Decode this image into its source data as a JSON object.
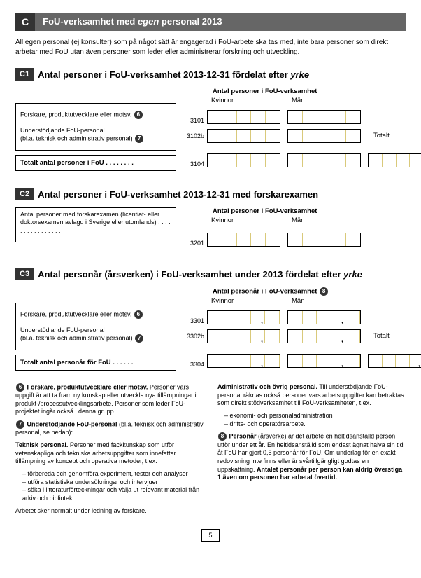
{
  "section": {
    "letter": "C",
    "title_html": "FoU-verksamhet med <em>egen</em> personal 2013"
  },
  "intro": "All egen personal (ej konsulter) som på något sätt är engagerad i FoU-arbete ska tas med, inte bara personer som direkt arbetar med FoU utan även personer som leder eller administrerar forskning och utveckling.",
  "c1": {
    "badge": "C1",
    "title_html": "Antal personer i FoU-verksamhet 2013-12-31 fördelat efter <em>yrke</em>",
    "header": "Antal personer i FoU-verksamhet",
    "col_kvinnor": "Kvinnor",
    "col_man": "Män",
    "totalt": "Totalt",
    "row1": {
      "text": "Forskare, produktutvecklare eller motsv.",
      "note": "6",
      "code": "3101"
    },
    "row2": {
      "text1": "Understödjande FoU-personal",
      "text2": "(bl.a. teknisk och administrativ personal)",
      "note": "7",
      "code": "3102b"
    },
    "row_total": {
      "text": "Totalt antal personer i FoU . . . . . . . .",
      "code": "3104"
    }
  },
  "c2": {
    "badge": "C2",
    "title": "Antal personer i FoU-verksamhet 2013-12-31 med forskarexamen",
    "header": "Antal personer i FoU-verksamhet",
    "col_kvinnor": "Kvinnor",
    "col_man": "Män",
    "row1": {
      "text": "Antal personer med forskarexamen (licentiat- eller doktorsexamen avlagd i Sverige eller utomlands) . . . . . . . . . . . . . . . .",
      "code": "3201"
    }
  },
  "c3": {
    "badge": "C3",
    "title_html": "Antal personår (årsverken) i <strong>FoU-verksamhet under 2013 fördelat efter <em>yrke</em></strong>",
    "header": "Antal personår i FoU-verksamhet",
    "header_note": "8",
    "col_kvinnor": "Kvinnor",
    "col_man": "Män",
    "totalt": "Totalt",
    "row1": {
      "text": "Forskare, produktutvecklare eller motsv.",
      "note": "6",
      "code": "3301"
    },
    "row2": {
      "text1": "Understödjande FoU-personal",
      "text2": "(bl.a. teknisk och administrativ personal)",
      "note": "7",
      "code": "3302b"
    },
    "row_total": {
      "text": "Totalt antal personår för FoU . . . . . .",
      "code": "3304"
    }
  },
  "notes": {
    "left": {
      "p1_lead": "Forskare, produktutvecklare eller motsv.",
      "p1_note": "6",
      "p1": " Personer vars uppgift är att ta fram ny kunskap eller utveckla nya tillämpningar i produkt-/processutvecklingsarbete. Personer som leder FoU-projektet ingår också i denna grupp.",
      "p2_lead": "Understödjande FoU-personal",
      "p2_note": "7",
      "p2_tail": " (bl.a. teknisk och administrativ personal, se nedan):",
      "p3_lead": "Teknisk personal.",
      "p3": " Personer med fackkunskap som utför vetenskapliga och tekniska arbetsuppgifter som innefattar tillämpning av koncept och operativa metoder, t.ex.",
      "li1": "förbereda och genomföra experiment, tester och analyser",
      "li2": "utföra statistiska undersökningar och intervjuer",
      "li3": "söka i litteraturförteckningar och välja ut relevant material från arkiv och bibliotek.",
      "p4": "Arbetet sker normalt under ledning av forskare."
    },
    "right": {
      "p1_lead": "Administrativ och övrig personal.",
      "p1": " Till understödjande FoU-personal räknas också personer vars arbetsuppgifter kan betraktas som direkt stödverksamhet till FoU-verksamheten, t.ex.",
      "li1": "ekonomi- och personaladministration",
      "li2": "drifts- och operatörsarbete.",
      "p2_lead": "Personår",
      "p2_note": "8",
      "p2": " (årsverke) är det arbete en heltidsanställd person utför under ett år. En heltidsanställd som endast ägnat halva sin tid åt FoU har gjort 0,5 personår för FoU. Om underlag för en exakt redovisning inte finns eller är svårtillgängligt godtas en uppskattning. ",
      "p2b_lead": "Antalet personår per person kan aldrig överstiga 1 även om personen har arbetat övertid."
    }
  },
  "page": "5",
  "colors": {
    "dark": "#333333",
    "mid": "#666666",
    "segline": "#d9c97a"
  }
}
